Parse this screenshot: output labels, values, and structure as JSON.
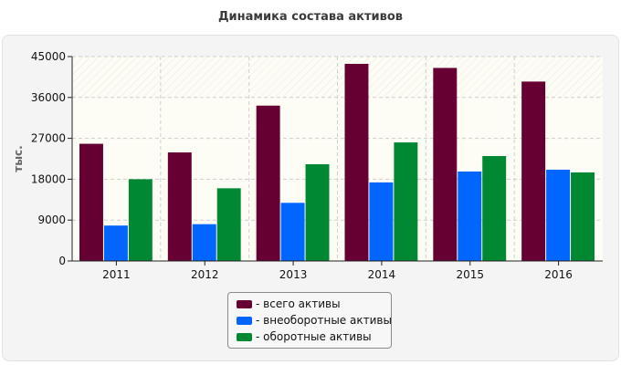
{
  "chart_data": {
    "type": "bar",
    "title": "Динамика состава активов",
    "xlabel": "",
    "ylabel": "тыс.",
    "categories": [
      "2011",
      "2012",
      "2013",
      "2014",
      "2015",
      "2016"
    ],
    "ylim": [
      0,
      45000
    ],
    "yticks": [
      "0",
      "9000",
      "18000",
      "27000",
      "36000",
      "45000"
    ],
    "grid": true,
    "legend_position": "bottom-center",
    "series": [
      {
        "name": "всего активы",
        "color": "#660033",
        "values": [
          25800,
          23900,
          34200,
          43400,
          42500,
          39500
        ]
      },
      {
        "name": "внеоборотные активы",
        "color": "#0066ff",
        "values": [
          7800,
          8100,
          12800,
          17300,
          19700,
          20100
        ]
      },
      {
        "name": "оборотные активы",
        "color": "#008833",
        "values": [
          18000,
          16000,
          21300,
          26100,
          23100,
          19500
        ]
      }
    ]
  }
}
